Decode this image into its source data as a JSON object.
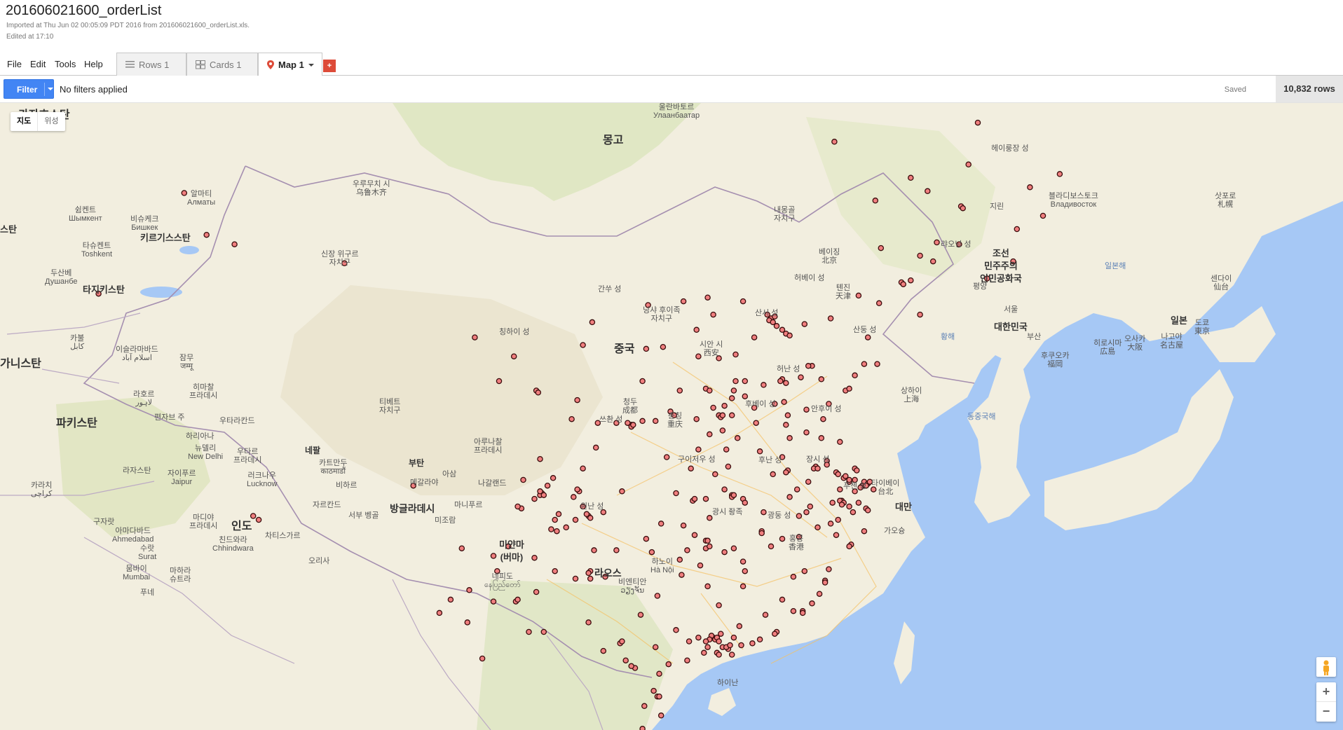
{
  "doc": {
    "title": "201606021600_orderList",
    "imported": "Imported at Thu Jun 02 00:05:09 PDT 2016 from 201606021600_orderList.xls.",
    "edited": "Edited at 17:10"
  },
  "menu": {
    "file": "File",
    "edit": "Edit",
    "tools": "Tools",
    "help": "Help"
  },
  "tabs": {
    "rows": {
      "label": "Rows 1",
      "icon": "rows-list-icon"
    },
    "cards": {
      "label": "Cards 1",
      "icon": "cards-grid-icon"
    },
    "map": {
      "label": "Map 1",
      "icon": "map-pin-icon"
    },
    "add": {
      "label": "+",
      "icon": "add-tab-icon"
    }
  },
  "filter": {
    "button_label": "Filter",
    "status": "No filters applied",
    "saved": "Saved",
    "row_count": "10,832 rows"
  },
  "map_controls": {
    "map": "지도",
    "satellite": "위성",
    "zoom_in": "+",
    "zoom_out": "−"
  },
  "colors": {
    "marker_fill": "#f07f7f",
    "marker_stroke": "#3a0c0c",
    "filter_blue": "#4285f4",
    "add_red": "#dd4b39",
    "water": "#a6c8f5",
    "land": "#f2eedf"
  },
  "labels": {
    "countries": {
      "mongolia": "몽고",
      "china": "중국",
      "kazakhstan": "카자흐스탄",
      "kyrgyzstan": "키르기스스탄",
      "tajikistan": "타지키스탄",
      "afghanistan": "가니스탄",
      "pakistan": "파키스탄",
      "india": "인도",
      "nepal": "네팔",
      "bhutan": "부탄",
      "bangladesh": "방글라데시",
      "myanmar": "미얀마\n(버마)",
      "laos": "라오스",
      "taiwan": "대만",
      "korea_north": "조선\n민주주의\n인민공화국",
      "korea_south": "대한민국",
      "japan": "일본",
      "stan_left": "스탄"
    },
    "cities": {
      "ulaanbaatar": "울란바토르\nУлаанбаатар",
      "urumqi": "우루무치 시\n乌鲁木齐",
      "almaty": "알마티\nАлматы",
      "shymkent": "쉼켄트\nШымкент",
      "bishkek": "비슈케크\nБишкек",
      "tashkent": "타슈켄트\nToshkent",
      "dushanbe": "두산베\nДушанбе",
      "kabul": "카불\nکابل",
      "islamabad": "이슬라마바드\nاسلام آباد",
      "jammu": "잠무\nजम्मू",
      "lahore": "라호르\nلاہور",
      "srinagar_amritsar": "히마찰\n프라데시",
      "chandigarh": "편자브 주",
      "uttarakhand": "우타라칸드",
      "new_delhi": "뉴델리\nNew Delhi",
      "haryana": "하리아나",
      "uttar_pradesh": "우타르\n프라데시",
      "lucknow": "러크나우\nLucknow",
      "jaipur": "자이푸르\nJaipur",
      "rajasthan": "라자스탄",
      "kathmandu": "카트만두\nकाठमाडौं",
      "bihar": "비하르",
      "karachi": "카라치\nكراچى",
      "gujarat": "구자랏",
      "ahmedabad": "아마다바드\nAhmedabad",
      "surat": "수랏\nSurat",
      "madhya": "마디야\n프라데시",
      "chhindwara": "친드와라\nChhindwara",
      "chhattisgarh": "차티스가르",
      "odisha": "오리사",
      "mumbai": "뭄바이\nMumbai",
      "maharashtra": "마하라\n슈트라",
      "pune": "푸네",
      "west_bengal": "서부 벵골",
      "jharkhand": "자르칸드",
      "meghalaya": "메갈라야",
      "mizoram": "미조람",
      "assam": "아삼",
      "arunachal": "아루나찰\n프라데시",
      "manipur": "마니푸르",
      "nagaland": "나갈랜드",
      "tibet": "티베트\n자치구",
      "qinghai": "칭하이 성",
      "xinjiang": "신장 위구르\n자치구",
      "gansu": "간쑤 성",
      "ningxia": "닝샤 후이족\n자치구",
      "inner_mongolia": "내몽골\n자치구",
      "shanxi": "산시 성",
      "beijing": "베이징\n北京",
      "hebei": "허베이 성",
      "tianjin": "톈진\n天津",
      "shandong": "산둥 성",
      "xian": "시안 시\n西安",
      "henan": "허난 성",
      "chengdu": "청두\n成都",
      "sichuan": "쓰촨 성",
      "chongqing": "충칭\n重庆",
      "guizhou": "구이저우 성",
      "hubei": "후베이 성",
      "anhui": "안후이 성",
      "shanghai": "상하이\n上海",
      "hunan": "후난 성",
      "jiangxi": "장시 성",
      "fujian": "푸젠 성",
      "yunnan": "윈난 성",
      "guangxi": "광시 좡족",
      "hanoi": "하노이\nHà Nội",
      "hong_kong": "홍콩\n香港",
      "guangdong": "광둥 성",
      "hainan": "하이난",
      "taipei": "타이베이\n台北",
      "vientiane": "비엔티안\nວຽງຈັນ",
      "naypyidaw": "네피도\nနေပြည်တော်",
      "haerbin": "헤이룽장 성",
      "jilin": "지린",
      "liaoning": "랴오닝 성",
      "vladivostok": "블라디보스토크\nВладивосток",
      "pyongyang": "평양",
      "seoul": "서울",
      "busan": "부산",
      "fukuoka": "후쿠오카\n福岡",
      "hiroshima": "히로시마\n広島",
      "osaka": "오사카\n大阪",
      "nagoya": "나고야\n名古屋",
      "tokyo": "도쿄\n東京",
      "sendai": "센다이\n仙台",
      "sapporo": "삿포로\n札幌",
      "gasoeng": "가오슝",
      "yellow_sea": "황해",
      "east_china_sea": "동중국해",
      "sea_of_japan": "일본해"
    }
  },
  "chart_data": {
    "type": "scatter",
    "title": "",
    "xlabel": "longitude",
    "ylabel": "latitude",
    "markers": [
      [
        116.4,
        39.9
      ],
      [
        116.6,
        40.0
      ],
      [
        116.3,
        39.8
      ],
      [
        116.5,
        39.7
      ],
      [
        116.2,
        40.1
      ],
      [
        117.2,
        39.1
      ],
      [
        117.4,
        39.0
      ],
      [
        117.0,
        39.3
      ],
      [
        114.5,
        38.0
      ],
      [
        115.5,
        38.9
      ],
      [
        114.9,
        40.8
      ],
      [
        118.2,
        39.6
      ],
      [
        119.6,
        39.9
      ],
      [
        116.7,
        39.5
      ],
      [
        115.0,
        36.6
      ],
      [
        114.5,
        36.6
      ],
      [
        113.6,
        37.8
      ],
      [
        112.5,
        37.9
      ],
      [
        112.9,
        36.2
      ],
      [
        111.5,
        36.1
      ],
      [
        111.0,
        35.0
      ],
      [
        113.1,
        36.1
      ],
      [
        112.4,
        39.3
      ],
      [
        113.3,
        40.1
      ],
      [
        110.6,
        38.4
      ],
      [
        111.7,
        40.8
      ],
      [
        109.8,
        40.6
      ],
      [
        106.8,
        39.7
      ],
      [
        113.0,
        41.0
      ],
      [
        117.0,
        36.7
      ],
      [
        117.2,
        36.5
      ],
      [
        116.9,
        36.6
      ],
      [
        118.0,
        36.8
      ],
      [
        118.6,
        37.4
      ],
      [
        119.1,
        36.7
      ],
      [
        120.4,
        36.1
      ],
      [
        120.6,
        36.2
      ],
      [
        121.4,
        37.5
      ],
      [
        122.1,
        37.5
      ],
      [
        120.9,
        36.9
      ],
      [
        119.5,
        35.4
      ],
      [
        118.3,
        35.1
      ],
      [
        117.1,
        35.5
      ],
      [
        116.6,
        35.4
      ],
      [
        115.5,
        35.2
      ],
      [
        116.0,
        36.4
      ],
      [
        117.3,
        34.8
      ],
      [
        118.4,
        37.4
      ],
      [
        121.6,
        38.9
      ],
      [
        123.4,
        41.8
      ],
      [
        123.5,
        41.7
      ],
      [
        123.9,
        41.9
      ],
      [
        122.2,
        40.7
      ],
      [
        121.1,
        41.1
      ],
      [
        124.4,
        40.1
      ],
      [
        125.3,
        43.9
      ],
      [
        126.5,
        43.8
      ],
      [
        126.6,
        45.8
      ],
      [
        126.7,
        45.7
      ],
      [
        124.8,
        46.6
      ],
      [
        130.3,
        46.8
      ],
      [
        131.0,
        45.3
      ],
      [
        129.6,
        44.6
      ],
      [
        123.9,
        47.3
      ],
      [
        127.5,
        50.2
      ],
      [
        119.8,
        49.2
      ],
      [
        122.0,
        46.1
      ],
      [
        127.0,
        48.0
      ],
      [
        125.1,
        42.9
      ],
      [
        124.4,
        43.2
      ],
      [
        122.3,
        43.6
      ],
      [
        128.0,
        42.0
      ],
      [
        131.9,
        47.5
      ],
      [
        129.4,
        42.9
      ],
      [
        108.9,
        34.3
      ],
      [
        108.9,
        34.2
      ],
      [
        109.0,
        34.3
      ],
      [
        108.7,
        34.4
      ],
      [
        107.1,
        34.4
      ],
      [
        109.5,
        34.5
      ],
      [
        110.2,
        34.5
      ],
      [
        109.5,
        36.6
      ],
      [
        109.7,
        38.3
      ],
      [
        106.0,
        35.6
      ],
      [
        106.3,
        38.5
      ],
      [
        103.8,
        36.1
      ],
      [
        103.9,
        36.0
      ],
      [
        105.7,
        34.6
      ],
      [
        101.8,
        36.6
      ],
      [
        102.6,
        37.9
      ],
      [
        100.5,
        38.9
      ],
      [
        104.7,
        31.5
      ],
      [
        104.1,
        30.7
      ],
      [
        104.0,
        30.6
      ],
      [
        104.2,
        30.6
      ],
      [
        103.7,
        30.4
      ],
      [
        104.0,
        30.8
      ],
      [
        105.0,
        29.6
      ],
      [
        104.8,
        29.3
      ],
      [
        104.4,
        31.1
      ],
      [
        105.8,
        30.5
      ],
      [
        106.1,
        30.8
      ],
      [
        106.6,
        29.5
      ],
      [
        106.5,
        29.6
      ],
      [
        106.7,
        29.4
      ],
      [
        107.4,
        29.7
      ],
      [
        108.4,
        30.8
      ],
      [
        105.9,
        29.3
      ],
      [
        106.3,
        30.0
      ],
      [
        103.0,
        29.9
      ],
      [
        102.3,
        27.9
      ],
      [
        101.7,
        26.6
      ],
      [
        103.7,
        27.3
      ],
      [
        105.4,
        28.9
      ],
      [
        106.7,
        26.6
      ],
      [
        106.6,
        26.5
      ],
      [
        106.9,
        27.7
      ],
      [
        107.5,
        26.3
      ],
      [
        105.9,
        26.2
      ],
      [
        108.1,
        27.7
      ],
      [
        104.8,
        26.6
      ],
      [
        102.7,
        25.0
      ],
      [
        102.8,
        25.1
      ],
      [
        103.8,
        25.5
      ],
      [
        100.2,
        25.6
      ],
      [
        100.9,
        22.0
      ],
      [
        99.2,
        25.1
      ],
      [
        103.4,
        23.4
      ],
      [
        104.2,
        23.4
      ],
      [
        101.5,
        25.0
      ],
      [
        98.6,
        24.4
      ],
      [
        100.1,
        23.9
      ],
      [
        108.3,
        22.8
      ],
      [
        108.4,
        22.9
      ],
      [
        110.3,
        25.3
      ],
      [
        109.4,
        24.3
      ],
      [
        106.6,
        23.9
      ],
      [
        111.3,
        23.5
      ],
      [
        109.1,
        21.5
      ],
      [
        108.6,
        21.9
      ],
      [
        110.2,
        22.6
      ],
      [
        107.4,
        22.4
      ],
      [
        113.3,
        23.1
      ],
      [
        113.2,
        23.2
      ],
      [
        113.4,
        23.0
      ],
      [
        113.5,
        23.1
      ],
      [
        113.6,
        22.9
      ],
      [
        113.8,
        22.6
      ],
      [
        114.1,
        22.5
      ],
      [
        114.0,
        22.6
      ],
      [
        114.2,
        22.7
      ],
      [
        113.1,
        23.0
      ],
      [
        113.0,
        22.6
      ],
      [
        113.5,
        22.3
      ],
      [
        113.6,
        22.2
      ],
      [
        112.9,
        22.9
      ],
      [
        112.5,
        23.1
      ],
      [
        114.4,
        23.1
      ],
      [
        114.7,
        23.7
      ],
      [
        116.7,
        23.4
      ],
      [
        116.6,
        23.3
      ],
      [
        115.4,
        22.8
      ],
      [
        110.4,
        21.2
      ],
      [
        110.9,
        21.7
      ],
      [
        111.9,
        21.9
      ],
      [
        113.6,
        24.8
      ],
      [
        116.1,
        24.3
      ],
      [
        112.0,
        22.9
      ],
      [
        113.7,
        23.3
      ],
      [
        110.3,
        20.0
      ],
      [
        110.4,
        20.0
      ],
      [
        109.5,
        18.3
      ],
      [
        109.6,
        19.5
      ],
      [
        112.9,
        28.2
      ],
      [
        113.0,
        28.2
      ],
      [
        112.9,
        27.8
      ],
      [
        113.1,
        27.9
      ],
      [
        112.6,
        26.9
      ],
      [
        113.0,
        25.8
      ],
      [
        111.5,
        27.2
      ],
      [
        110.0,
        27.6
      ],
      [
        111.7,
        29.0
      ],
      [
        113.1,
        29.4
      ],
      [
        111.6,
        26.4
      ],
      [
        109.7,
        28.3
      ],
      [
        112.3,
        28.5
      ],
      [
        111.9,
        27.7
      ],
      [
        114.3,
        30.6
      ],
      [
        114.3,
        30.5
      ],
      [
        114.4,
        30.6
      ],
      [
        113.9,
        30.9
      ],
      [
        112.2,
        30.3
      ],
      [
        111.3,
        30.7
      ],
      [
        112.1,
        32.0
      ],
      [
        110.8,
        32.6
      ],
      [
        112.9,
        30.4
      ],
      [
        114.9,
        30.4
      ],
      [
        115.0,
        30.2
      ],
      [
        113.4,
        31.7
      ],
      [
        116.0,
        29.7
      ],
      [
        115.9,
        28.7
      ],
      [
        115.9,
        28.6
      ],
      [
        114.9,
        25.8
      ],
      [
        117.0,
        28.3
      ],
      [
        114.4,
        27.8
      ],
      [
        117.9,
        28.4
      ],
      [
        114.9,
        27.1
      ],
      [
        116.4,
        27.9
      ],
      [
        115.0,
        26.6
      ],
      [
        113.9,
        27.6
      ],
      [
        118.1,
        24.5
      ],
      [
        118.1,
        24.4
      ],
      [
        119.3,
        26.1
      ],
      [
        119.3,
        26.0
      ],
      [
        118.6,
        24.9
      ],
      [
        117.6,
        24.5
      ],
      [
        119.0,
        25.4
      ],
      [
        117.0,
        25.1
      ],
      [
        118.2,
        26.6
      ],
      [
        119.5,
        26.7
      ],
      [
        117.6,
        26.3
      ],
      [
        120.2,
        30.3
      ],
      [
        120.1,
        30.3
      ],
      [
        120.3,
        30.2
      ],
      [
        120.2,
        30.1
      ],
      [
        120.6,
        30.0
      ],
      [
        121.5,
        29.9
      ],
      [
        121.6,
        29.8
      ],
      [
        120.9,
        30.8
      ],
      [
        120.1,
        30.9
      ],
      [
        119.6,
        29.1
      ],
      [
        120.0,
        29.3
      ],
      [
        120.7,
        28.0
      ],
      [
        120.6,
        27.9
      ],
      [
        121.4,
        28.7
      ],
      [
        119.9,
        28.5
      ],
      [
        118.9,
        28.9
      ],
      [
        121.1,
        30.2
      ],
      [
        121.5,
        31.2
      ],
      [
        121.4,
        31.3
      ],
      [
        121.6,
        31.2
      ],
      [
        121.3,
        31.1
      ],
      [
        121.2,
        31.0
      ],
      [
        121.5,
        31.1
      ],
      [
        121.7,
        31.3
      ],
      [
        120.6,
        31.3
      ],
      [
        120.6,
        31.4
      ],
      [
        120.9,
        31.4
      ],
      [
        120.3,
        31.5
      ],
      [
        120.4,
        31.6
      ],
      [
        119.9,
        31.8
      ],
      [
        120.0,
        31.7
      ],
      [
        119.4,
        32.4
      ],
      [
        118.8,
        32.1
      ],
      [
        118.7,
        32.0
      ],
      [
        118.9,
        32.0
      ],
      [
        119.4,
        32.2
      ],
      [
        120.9,
        32.0
      ],
      [
        120.1,
        33.4
      ],
      [
        119.1,
        33.6
      ],
      [
        119.2,
        34.6
      ],
      [
        117.2,
        34.3
      ],
      [
        118.3,
        33.9
      ],
      [
        117.3,
        31.9
      ],
      [
        117.2,
        31.8
      ],
      [
        117.0,
        32.6
      ],
      [
        118.4,
        31.3
      ],
      [
        117.8,
        30.9
      ],
      [
        116.5,
        31.7
      ],
      [
        117.4,
        30.5
      ],
      [
        115.8,
        32.9
      ],
      [
        117.4,
        33.6
      ],
      [
        118.3,
        29.7
      ],
      [
        113.6,
        34.8
      ],
      [
        113.7,
        34.7
      ],
      [
        113.8,
        34.8
      ],
      [
        114.3,
        34.8
      ],
      [
        112.4,
        34.6
      ],
      [
        113.1,
        33.8
      ],
      [
        113.8,
        34.0
      ],
      [
        114.3,
        35.7
      ],
      [
        113.9,
        35.3
      ],
      [
        115.6,
        34.4
      ],
      [
        114.6,
        33.6
      ],
      [
        114.0,
        33.0
      ],
      [
        114.1,
        32.1
      ],
      [
        112.5,
        33.0
      ],
      [
        111.2,
        34.8
      ],
      [
        113.3,
        35.2
      ],
      [
        114.4,
        36.1
      ],
      [
        115.0,
        35.8
      ],
      [
        104.0,
        32.5
      ],
      [
        106.3,
        32.0
      ],
      [
        104.6,
        28.8
      ],
      [
        102.8,
        30.0
      ],
      [
        99.8,
        27.8
      ],
      [
        101.5,
        27.4
      ],
      [
        103.1,
        31.4
      ],
      [
        88.9,
        29.3
      ],
      [
        88.6,
        29.5
      ],
      [
        97.2,
        31.1
      ],
      [
        87.6,
        43.8
      ],
      [
        86.1,
        44.3
      ],
      [
        84.9,
        46.5
      ],
      [
        93.5,
        42.8
      ],
      [
        80.3,
        41.2
      ],
      [
        108.1,
        34.4
      ],
      [
        107.0,
        33.1
      ],
      [
        106.7,
        26.2
      ],
      [
        104.9,
        28.7
      ],
      [
        106.0,
        30.9
      ],
      [
        110.5,
        29.1
      ],
      [
        112.3,
        30.4
      ],
      [
        114.8,
        22.7
      ],
      [
        114.3,
        22.2
      ],
      [
        110.5,
        19.0
      ],
      [
        110.1,
        20.3
      ],
      [
        108.9,
        21.6
      ],
      [
        112.8,
        22.3
      ],
      [
        115.8,
        23.0
      ],
      [
        121.0,
        31.9
      ],
      [
        120.8,
        29.7
      ],
      [
        121.9,
        30.9
      ],
      [
        119.7,
        30.2
      ],
      [
        118.5,
        30.0
      ],
      [
        117.9,
        29.5
      ]
    ]
  }
}
